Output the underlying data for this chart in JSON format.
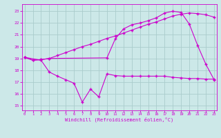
{
  "xlabel": "Windchill (Refroidissement éolien,°C)",
  "background_color": "#cce8e8",
  "grid_color": "#aacccc",
  "line_color": "#cc00cc",
  "x_ticks": [
    0,
    1,
    2,
    3,
    4,
    5,
    6,
    7,
    8,
    9,
    10,
    11,
    12,
    13,
    14,
    15,
    16,
    17,
    18,
    19,
    20,
    21,
    22,
    23
  ],
  "y_ticks": [
    15,
    16,
    17,
    18,
    19,
    20,
    21,
    22,
    23
  ],
  "xlim": [
    -0.3,
    23.3
  ],
  "ylim": [
    14.6,
    23.6
  ],
  "line1_x": [
    0,
    1,
    2,
    3,
    4,
    5,
    6,
    7,
    8,
    9,
    10,
    11,
    12,
    13,
    14,
    15,
    16,
    17,
    18,
    19,
    20,
    21,
    22,
    23
  ],
  "line1_y": [
    19.1,
    18.85,
    18.9,
    19.0,
    19.25,
    19.5,
    19.75,
    20.0,
    20.2,
    20.45,
    20.7,
    20.9,
    21.15,
    21.4,
    21.65,
    21.9,
    22.1,
    22.35,
    22.6,
    22.75,
    22.85,
    22.8,
    22.7,
    22.5
  ],
  "line2_x": [
    0,
    1,
    2,
    3,
    10,
    11,
    12,
    13,
    14,
    15,
    16,
    17,
    18,
    19,
    20,
    21,
    22,
    23
  ],
  "line2_y": [
    19.1,
    18.85,
    18.9,
    19.0,
    19.05,
    20.65,
    21.5,
    21.85,
    22.0,
    22.2,
    22.45,
    22.85,
    23.0,
    22.9,
    21.9,
    20.1,
    18.5,
    17.2
  ],
  "line3_x": [
    0,
    2,
    3,
    4,
    5,
    6,
    7,
    8,
    9,
    10,
    11,
    12,
    13,
    14,
    15,
    16,
    17,
    18,
    19,
    20,
    21,
    22,
    23
  ],
  "line3_y": [
    19.1,
    18.85,
    17.85,
    17.5,
    17.2,
    16.9,
    15.3,
    16.4,
    15.75,
    17.7,
    17.55,
    17.5,
    17.5,
    17.5,
    17.5,
    17.5,
    17.5,
    17.4,
    17.35,
    17.3,
    17.3,
    17.25,
    17.25
  ]
}
